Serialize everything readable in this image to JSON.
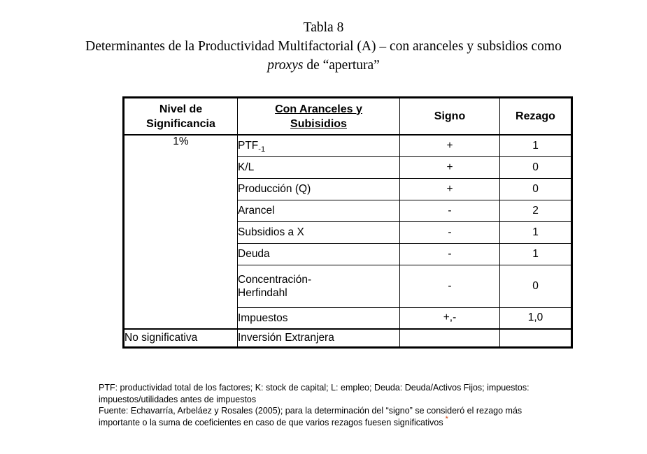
{
  "title": {
    "line1": "Tabla 8",
    "line2": "Determinantes de la Productividad Multifactorial (A) – con aranceles y subsidios como",
    "line3_italic": "proxys",
    "line3_rest": " de “apertura”"
  },
  "table": {
    "headers": {
      "significance": "Nivel de\nSignificancia",
      "variables": "Con Aranceles y\nSubisidios",
      "signo": "Signo",
      "rezago": "Rezago"
    },
    "group": {
      "level": "1%",
      "rows": [
        {
          "variable": "PTF",
          "variable_sub": "-1",
          "signo": "+",
          "rezago": "1"
        },
        {
          "variable": "K/L",
          "signo": "+",
          "rezago": "0"
        },
        {
          "variable": "Producción (Q)",
          "signo": "+",
          "rezago": "0"
        },
        {
          "variable": "Arancel",
          "signo": "-",
          "rezago": "2"
        },
        {
          "variable": "Subsidios a X",
          "signo": "-",
          "rezago": "1"
        },
        {
          "variable": "Deuda",
          "signo": "-",
          "rezago": "1"
        },
        {
          "variable": "Concentración-\nHerfindahl",
          "signo": "-",
          "rezago": "0"
        },
        {
          "variable": "Impuestos",
          "signo": "+,-",
          "rezago": "1,0"
        }
      ]
    },
    "non_significant": {
      "level": "No significativa",
      "variable": "Inversión Extranjera",
      "signo": "",
      "rezago": ""
    }
  },
  "footnote": {
    "lines": [
      "PTF: productividad total de los factores; K: stock de capital; L: empleo; Deuda: Deuda/Activos Fijos; impuestos:",
      "impuestos/utilidades antes de impuestos",
      "Fuente: Echavarría, Arbeláez y Rosales (2005); para la determinación del “signo” se consideró el rezago más",
      "importante o la suma de coeficientes en caso de que varios rezagos fuesen significativos"
    ],
    "marker": "*",
    "marker_color": "#cc3a00"
  },
  "colors": {
    "background": "#ffffff",
    "text": "#000000",
    "table_border": "#000000"
  }
}
